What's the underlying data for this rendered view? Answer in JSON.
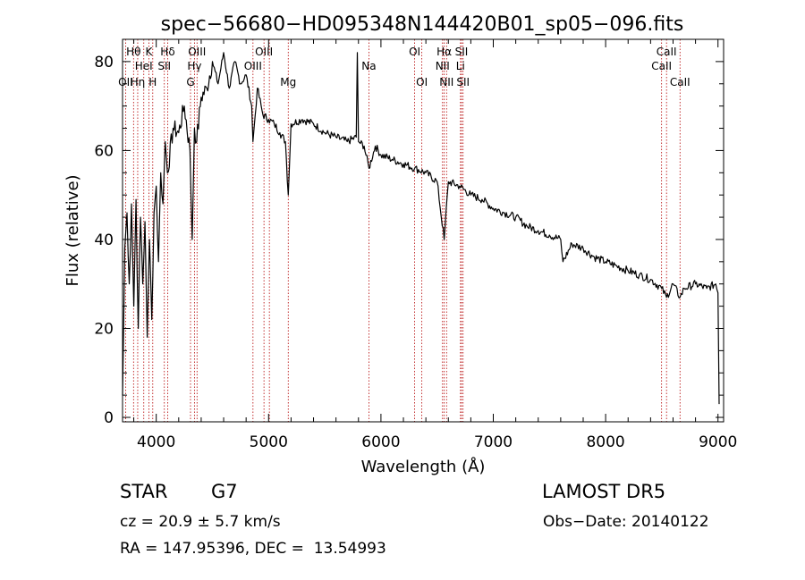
{
  "chart_data": {
    "type": "line",
    "title": "spec−56680−HD095348N144420B01_sp05−096.fits",
    "xlabel": "Wavelength (Å)",
    "ylabel": "Flux (relative)",
    "xlim": [
      3700,
      9050
    ],
    "ylim": [
      -1,
      85
    ],
    "xticks": [
      4000,
      5000,
      6000,
      7000,
      8000,
      9000
    ],
    "yticks": [
      0,
      20,
      40,
      60,
      80
    ],
    "series": [
      {
        "x": [
          3700,
          3720,
          3740,
          3760,
          3780,
          3800,
          3820,
          3840,
          3860,
          3880,
          3900,
          3920,
          3940,
          3960,
          3980,
          4000,
          4020,
          4040,
          4060,
          4080,
          4100,
          4150,
          4200,
          4250,
          4300,
          4320,
          4340,
          4360,
          4400,
          4450,
          4500,
          4550,
          4600,
          4650,
          4700,
          4750,
          4800,
          4850,
          4861,
          4900,
          4950,
          5000,
          5050,
          5100,
          5150,
          5175,
          5200,
          5300,
          5400,
          5500,
          5600,
          5700,
          5780,
          5790,
          5800,
          5850,
          5893,
          5950,
          6000,
          6100,
          6200,
          6300,
          6400,
          6500,
          6563,
          6600,
          6700,
          6800,
          6900,
          7000,
          7100,
          7200,
          7300,
          7400,
          7500,
          7600,
          7620,
          7700,
          7800,
          7900,
          8000,
          8100,
          8200,
          8300,
          8400,
          8498,
          8542,
          8600,
          8662,
          8700,
          8800,
          8900,
          8980,
          9000,
          9010
        ],
        "y": [
          5,
          38,
          46,
          30,
          48,
          25,
          49,
          20,
          45,
          30,
          44,
          18,
          40,
          22,
          46,
          52,
          35,
          55,
          48,
          62,
          55,
          65,
          64,
          70,
          60,
          40,
          65,
          62,
          72,
          74,
          80,
          75,
          82,
          74,
          80,
          75,
          77,
          70,
          62,
          74,
          68,
          67,
          66,
          64,
          62,
          50,
          66,
          67,
          66,
          64,
          63,
          62,
          63,
          82,
          62,
          61,
          56,
          61,
          59,
          58,
          57,
          56,
          55,
          53,
          40,
          53,
          52,
          50,
          49,
          47,
          46,
          45,
          43,
          42,
          41,
          40,
          35,
          39,
          38,
          36,
          35,
          34,
          33,
          32,
          31,
          29,
          27,
          30,
          27,
          29,
          30,
          29,
          30,
          28,
          3
        ]
      }
    ],
    "lines": [
      {
        "wl": 3727,
        "label": "OII",
        "row": 3
      },
      {
        "wl": 3798,
        "label": "Hθ",
        "row": 1
      },
      {
        "wl": 3835,
        "label": "Hη",
        "row": 3
      },
      {
        "wl": 3889,
        "label": "HeI",
        "row": 2
      },
      {
        "wl": 3934,
        "label": "K",
        "row": 1
      },
      {
        "wl": 3969,
        "label": "H",
        "row": 3
      },
      {
        "wl": 4072,
        "label": "SII",
        "row": 2
      },
      {
        "wl": 4102,
        "label": "Hδ",
        "row": 1
      },
      {
        "wl": 4305,
        "label": "G",
        "row": 3
      },
      {
        "wl": 4340,
        "label": "Hγ",
        "row": 2
      },
      {
        "wl": 4363,
        "label": "OIII",
        "row": 1
      },
      {
        "wl": 4861,
        "label": "OIII",
        "row": 2
      },
      {
        "wl": 4959,
        "label": "OIII",
        "row": 1
      },
      {
        "wl": 5007,
        "label": "",
        "row": 1
      },
      {
        "wl": 5175,
        "label": "Mg",
        "row": 3
      },
      {
        "wl": 5893,
        "label": "Na",
        "row": 2
      },
      {
        "wl": 6300,
        "label": "OI",
        "row": 1
      },
      {
        "wl": 6364,
        "label": "OI",
        "row": 3
      },
      {
        "wl": 6548,
        "label": "NII",
        "row": 2
      },
      {
        "wl": 6563,
        "label": "Hα",
        "row": 1
      },
      {
        "wl": 6584,
        "label": "NII",
        "row": 3
      },
      {
        "wl": 6708,
        "label": "Li",
        "row": 2
      },
      {
        "wl": 6717,
        "label": "SII",
        "row": 1
      },
      {
        "wl": 6731,
        "label": "SII",
        "row": 3
      },
      {
        "wl": 8498,
        "label": "CaII",
        "row": 2
      },
      {
        "wl": 8542,
        "label": "CaII",
        "row": 1
      },
      {
        "wl": 8662,
        "label": "CaII",
        "row": 3
      }
    ]
  },
  "info": {
    "object_class": "STAR",
    "subclass": "G7",
    "survey": "LAMOST DR5",
    "cz": "cz = 20.9 ± 5.7 km/s",
    "obs_date": "Obs−Date: 20140122",
    "radec": "RA = 147.95396, DEC =  13.54993"
  },
  "colors": {
    "spectrum": "#000000",
    "line_markers": "#b40000",
    "axes": "#000000",
    "background": "#ffffff"
  }
}
